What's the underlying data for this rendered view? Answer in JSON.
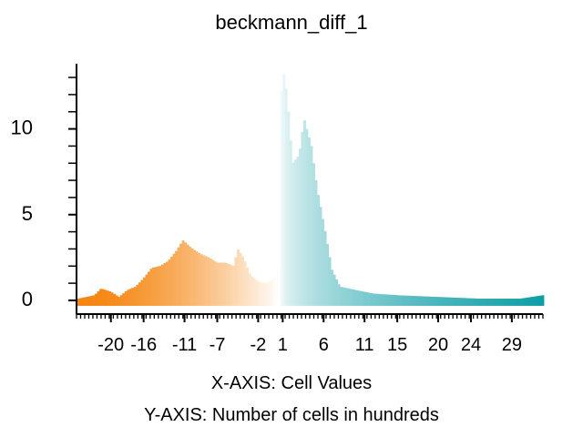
{
  "chart_data": {
    "type": "bar",
    "title": "beckmann_diff_1",
    "xlabel": "X-AXIS: Cell Values",
    "ylabel": "Y-AXIS: Number of cells in hundreds",
    "xlim": [
      -24.2,
      32.8
    ],
    "ylim": [
      -0.8,
      13.8
    ],
    "x_ticks": [
      -20,
      -16,
      -11,
      -7,
      -2,
      1,
      6,
      11,
      15,
      20,
      24,
      29
    ],
    "y_ticks": [
      0,
      5,
      10
    ],
    "color_low": "#F5850F",
    "color_mid": "#FFFFFF",
    "color_high": "#0E9EA6",
    "bar_width": 0.28,
    "points": [
      [
        -24,
        0.1
      ],
      [
        -22,
        0.3
      ],
      [
        -21.2,
        0.7
      ],
      [
        -20,
        0.5
      ],
      [
        -19,
        0.2
      ],
      [
        -18,
        0.6
      ],
      [
        -17,
        0.8
      ],
      [
        -16,
        1.3
      ],
      [
        -15,
        1.9
      ],
      [
        -14,
        2.0
      ],
      [
        -13,
        2.3
      ],
      [
        -12,
        2.9
      ],
      [
        -11.2,
        3.5
      ],
      [
        -10.5,
        3.2
      ],
      [
        -10,
        3.0
      ],
      [
        -9,
        2.7
      ],
      [
        -8,
        2.5
      ],
      [
        -7,
        2.2
      ],
      [
        -6,
        2.2
      ],
      [
        -5,
        2.0
      ],
      [
        -4.5,
        3.0
      ],
      [
        -3.8,
        2.5
      ],
      [
        -3,
        1.5
      ],
      [
        -2,
        1.1
      ],
      [
        -1,
        1.0
      ],
      [
        0,
        1.3
      ],
      [
        0.5,
        2.2
      ],
      [
        0.8,
        12.0
      ],
      [
        1.2,
        13.4
      ],
      [
        1.7,
        11.0
      ],
      [
        2.2,
        8.0
      ],
      [
        3,
        8.5
      ],
      [
        3.6,
        10.6
      ],
      [
        4.5,
        9.0
      ],
      [
        5.2,
        6.5
      ],
      [
        6.2,
        4.0
      ],
      [
        7,
        1.8
      ],
      [
        8,
        0.8
      ],
      [
        10,
        0.6
      ],
      [
        12,
        0.4
      ],
      [
        15,
        0.3
      ],
      [
        20,
        0.2
      ],
      [
        25,
        0.1
      ],
      [
        30,
        0.1
      ],
      [
        32.8,
        0.3
      ]
    ]
  }
}
